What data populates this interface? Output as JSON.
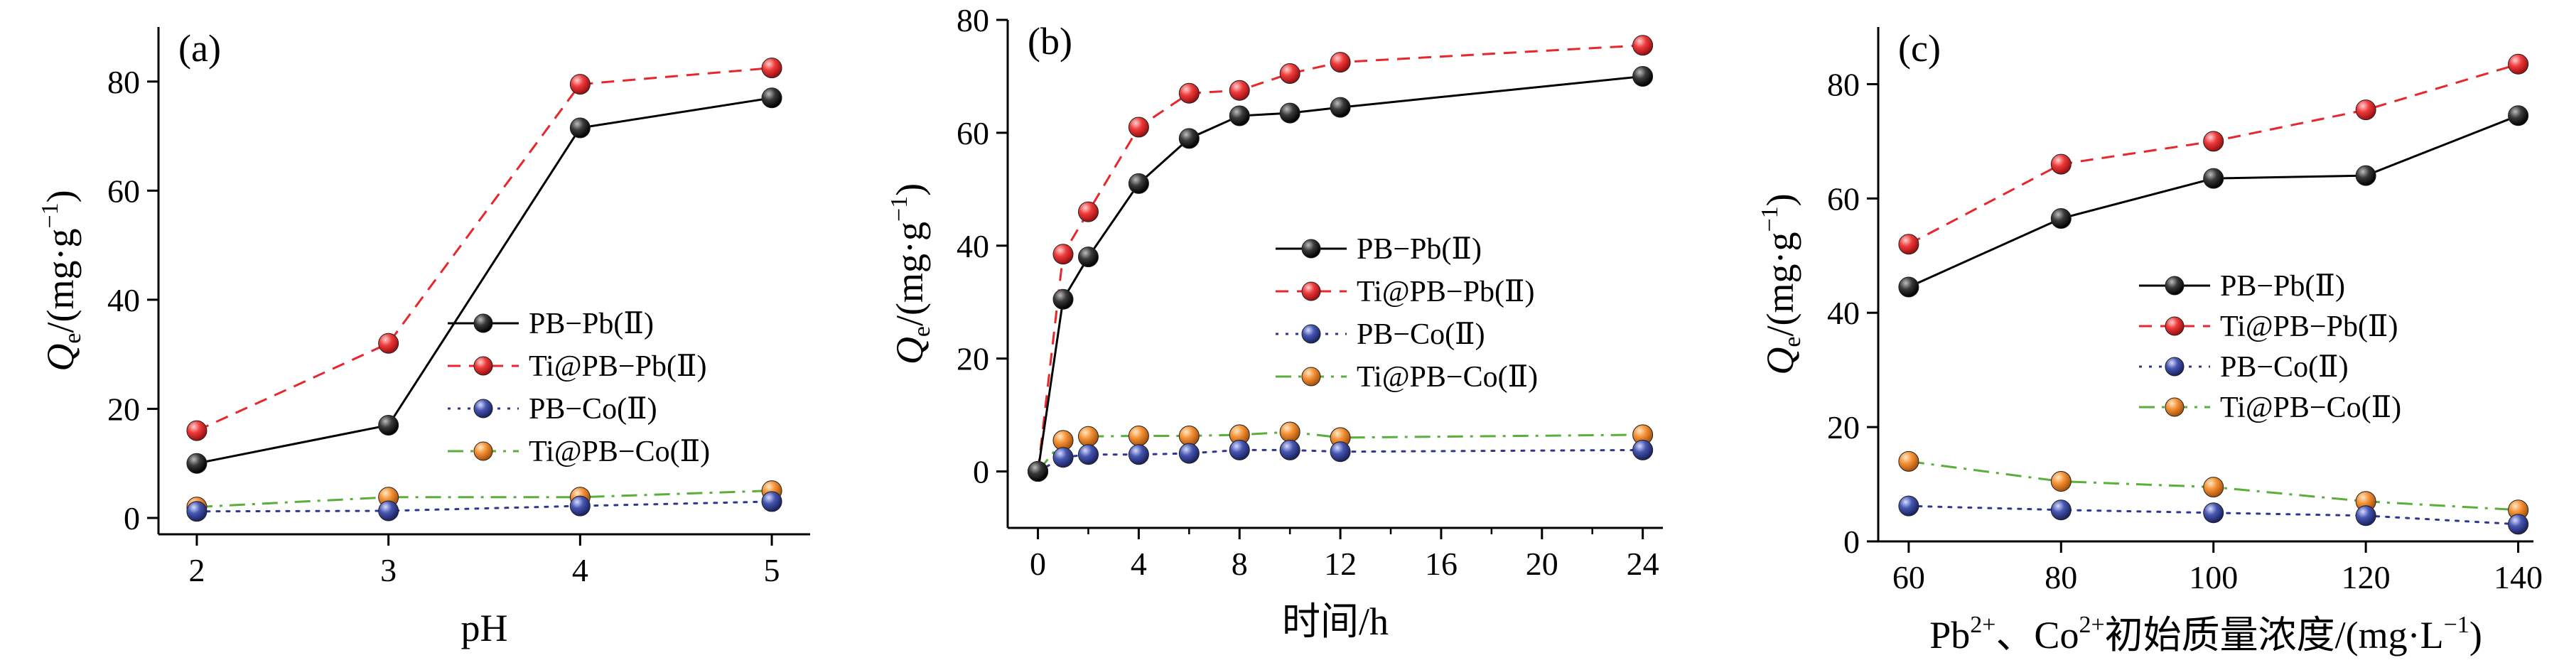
{
  "series_styles": [
    {
      "line": "#000000",
      "dash": "",
      "marker": "#1a1a1a"
    },
    {
      "line": "#e8262c",
      "dash": "18,12",
      "marker": "#e8262c"
    },
    {
      "line": "#2d3691",
      "dash": "4,10",
      "marker": "#3a4aa6"
    },
    {
      "line": "#5aae3a",
      "dash": "22,10,4,10",
      "marker": "#f08a2a"
    }
  ],
  "chart_data": [
    {
      "type": "line",
      "panel_label": "(a)",
      "xlabel": "pH",
      "ylabel_main": "Q",
      "ylabel_sub": "e",
      "ylabel_rest": "/(mg·g",
      "ylabel_sup": "−1",
      "ylabel_close": ")",
      "xlim": [
        1.8,
        5.2
      ],
      "ylim": [
        -3,
        90
      ],
      "xticks": [
        2,
        3,
        4,
        5
      ],
      "xtick_labels": [
        "2",
        "3",
        "4",
        "5"
      ],
      "yticks": [
        0,
        20,
        40,
        60,
        80
      ],
      "ytick_labels": [
        "0",
        "20",
        "40",
        "60",
        "80"
      ],
      "legend_position": "middle-right",
      "series": [
        {
          "name": "PB−Pb(Ⅱ)",
          "x": [
            2,
            3,
            4,
            5
          ],
          "y": [
            10,
            17,
            71.5,
            77
          ]
        },
        {
          "name": "Ti@PB−Pb(Ⅱ)",
          "x": [
            2,
            3,
            4,
            5
          ],
          "y": [
            16,
            32,
            79.5,
            82.5
          ]
        },
        {
          "name": "PB−Co(Ⅱ)",
          "x": [
            2,
            3,
            4,
            5
          ],
          "y": [
            1.2,
            1.3,
            2.2,
            3
          ]
        },
        {
          "name": "Ti@PB−Co(Ⅱ)",
          "x": [
            2,
            3,
            4,
            5
          ],
          "y": [
            2,
            3.8,
            3.8,
            5
          ]
        }
      ]
    },
    {
      "type": "line",
      "panel_label": "(b)",
      "xlabel": "时间/h",
      "ylabel_main": "Q",
      "ylabel_sub": "e",
      "ylabel_rest": "/(mg·g",
      "ylabel_sup": "−1",
      "ylabel_close": ")",
      "xlim": [
        -1.2,
        24.8
      ],
      "ylim": [
        -10,
        80
      ],
      "xticks": [
        0,
        4,
        8,
        12,
        16,
        20,
        24
      ],
      "xtick_labels": [
        "0",
        "4",
        "8",
        "12",
        "16",
        "20",
        "24"
      ],
      "yticks": [
        0,
        20,
        40,
        60,
        80
      ],
      "ytick_labels": [
        "0",
        "20",
        "40",
        "60",
        "80"
      ],
      "legend_position": "middle-right",
      "series": [
        {
          "name": "PB−Pb(Ⅱ)",
          "x": [
            0,
            1,
            2,
            4,
            6,
            8,
            10,
            12,
            24
          ],
          "y": [
            0,
            30.5,
            38,
            51,
            59,
            63,
            63.5,
            64.5,
            70
          ]
        },
        {
          "name": "Ti@PB−Pb(Ⅱ)",
          "x": [
            0,
            1,
            2,
            4,
            6,
            8,
            10,
            12,
            24
          ],
          "y": [
            0,
            38.5,
            46,
            61,
            67,
            67.5,
            70.5,
            72.5,
            75.5
          ]
        },
        {
          "name": "PB−Co(Ⅱ)",
          "x": [
            0,
            1,
            2,
            4,
            6,
            8,
            10,
            12,
            24
          ],
          "y": [
            0,
            2.5,
            3,
            3,
            3.2,
            3.8,
            3.8,
            3.5,
            3.8
          ]
        },
        {
          "name": "Ti@PB−Co(Ⅱ)",
          "x": [
            0,
            1,
            2,
            4,
            6,
            8,
            10,
            12,
            24
          ],
          "y": [
            0,
            5.5,
            6.2,
            6.3,
            6.3,
            6.5,
            7,
            6,
            6.5
          ]
        }
      ]
    },
    {
      "type": "line",
      "panel_label": "(c)",
      "xlabel_main": "Pb",
      "xlabel_sup1": "2+",
      "xlabel_mid": "、Co",
      "xlabel_sup2": "2+",
      "xlabel_rest": "初始质量浓度/(mg·L",
      "xlabel_sup3": "−1",
      "xlabel_close": ")",
      "ylabel_main": "Q",
      "ylabel_sub": "e",
      "ylabel_rest": "/(mg·g",
      "ylabel_sup": "−1",
      "ylabel_close": ")",
      "xlim": [
        56,
        142
      ],
      "ylim": [
        0,
        90
      ],
      "xticks": [
        60,
        80,
        100,
        120,
        140
      ],
      "xtick_labels": [
        "60",
        "80",
        "100",
        "120",
        "140"
      ],
      "yticks": [
        0,
        20,
        40,
        60,
        80
      ],
      "ytick_labels": [
        "0",
        "20",
        "40",
        "60",
        "80"
      ],
      "legend_position": "middle-right",
      "series": [
        {
          "name": "PB−Pb(Ⅱ)",
          "x": [
            60,
            80,
            100,
            120,
            140
          ],
          "y": [
            44.5,
            56.5,
            63.5,
            64,
            74.5
          ]
        },
        {
          "name": "Ti@PB−Pb(Ⅱ)",
          "x": [
            60,
            80,
            100,
            120,
            140
          ],
          "y": [
            52,
            66,
            70,
            75.5,
            83.5
          ]
        },
        {
          "name": "PB−Co(Ⅱ)",
          "x": [
            60,
            80,
            100,
            120,
            140
          ],
          "y": [
            6.2,
            5.5,
            5,
            4.5,
            3
          ]
        },
        {
          "name": "Ti@PB−Co(Ⅱ)",
          "x": [
            60,
            80,
            100,
            120,
            140
          ],
          "y": [
            14,
            10.5,
            9.5,
            7,
            5.5
          ]
        }
      ]
    }
  ]
}
